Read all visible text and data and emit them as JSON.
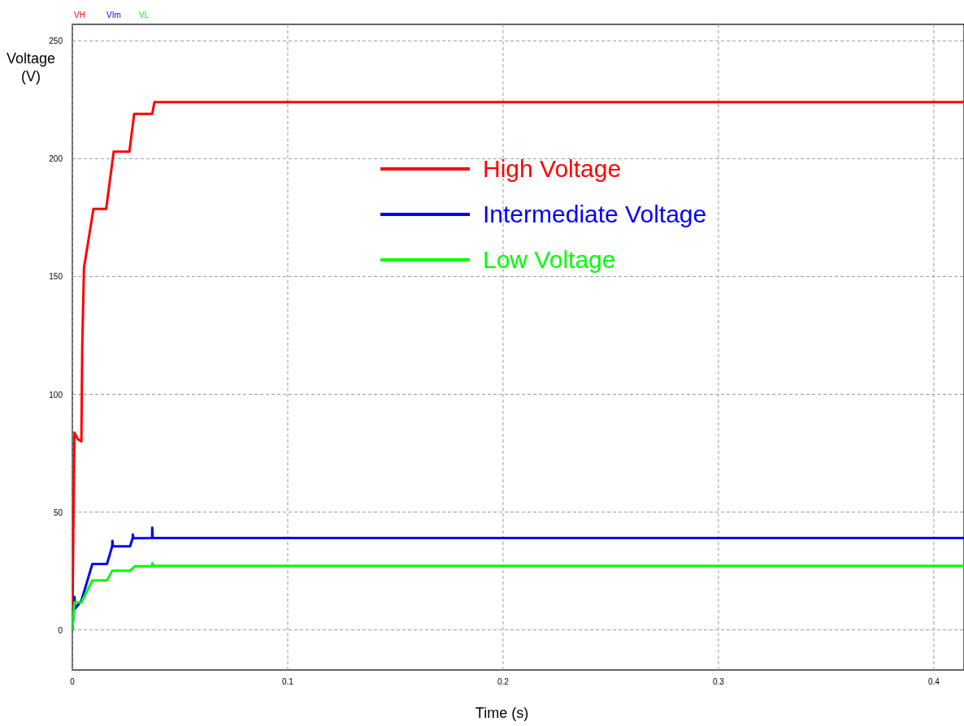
{
  "chart_data": {
    "type": "line",
    "xlabel": "Time (s)",
    "ylabel": "Voltage\n(V)",
    "xlim": [
      0,
      0.414
    ],
    "ylim": [
      -17,
      257
    ],
    "xticks": [
      0,
      0.1,
      0.2,
      0.3,
      0.4
    ],
    "yticks": [
      0,
      50,
      100,
      150,
      200,
      250
    ],
    "grid": true,
    "legend": "top",
    "line_style": "solid",
    "marker": "none",
    "annotations": [
      "VH",
      "VIm",
      "VL"
    ],
    "series": [
      {
        "name": "High Voltage",
        "color": "#ff0000",
        "x": [
          0,
          0.0008,
          0.001,
          0.0025,
          0.0042,
          0.0046,
          0.0054,
          0.0098,
          0.0157,
          0.0192,
          0.0265,
          0.0287,
          0.0371,
          0.0381,
          0.414
        ],
        "values": [
          0,
          70,
          83.7,
          81,
          80,
          120,
          153.6,
          178.7,
          178.7,
          203,
          203,
          219,
          219,
          224,
          224
        ]
      },
      {
        "name": "Intermediate Voltage",
        "color": "#0000ff",
        "x": [
          0,
          0.0007,
          0.001,
          0.0013,
          0.0042,
          0.0093,
          0.0161,
          0.0185,
          0.0186,
          0.0188,
          0.0268,
          0.028,
          0.0281,
          0.0283,
          0.037,
          0.0371,
          0.0373,
          0.414
        ],
        "values": [
          0,
          8,
          14,
          9,
          12.4,
          28,
          28,
          35.5,
          37.8,
          35.5,
          35.5,
          38.9,
          40.5,
          38.9,
          39,
          43.4,
          39,
          39
        ]
      },
      {
        "name": "Low Voltage",
        "color": "#00ff00",
        "x": [
          0,
          0.001,
          0.0042,
          0.0093,
          0.0161,
          0.0185,
          0.0268,
          0.029,
          0.037,
          0.0371,
          0.0373,
          0.414
        ],
        "values": [
          0,
          11.7,
          11.7,
          21,
          21,
          25.1,
          25.1,
          27,
          27,
          28.3,
          27.2,
          27.2
        ]
      }
    ]
  }
}
